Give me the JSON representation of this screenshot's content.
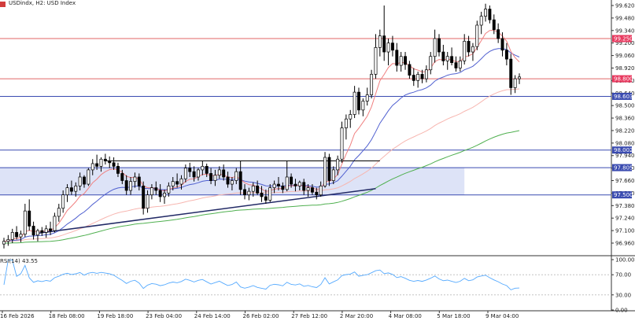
{
  "header": {
    "title": "USDindx, H2:  USD Index",
    "rsi_label": "RSI(14) 43.55"
  },
  "colors": {
    "bull": "#ffffff",
    "bear": "#000000",
    "candle_border": "#000000",
    "ma_fast": "#f08080",
    "ma_mid": "#5060d0",
    "ma_slow": "#f7b6b0",
    "ma_long": "#50b050",
    "red_level": "#e06666",
    "blue_level": "#3a4bb0",
    "zone_fill": "#dde3f7",
    "badge_red": "#e8395f",
    "badge_blue": "#3a4bb0",
    "rsi_line": "#55aaff",
    "grid": "#e6e6e6"
  },
  "chart_data": {
    "type": "candlestick",
    "price_axis_ticks": [
      "99.620",
      "99.480",
      "99.340",
      "99.200",
      "99.060",
      "98.920",
      "98.780",
      "98.640",
      "98.500",
      "98.360",
      "98.220",
      "98.080",
      "97.940",
      "97.800",
      "97.660",
      "97.520",
      "97.380",
      "97.240",
      "97.100",
      "96.960"
    ],
    "ylim": [
      96.84,
      99.72
    ],
    "x_axis_labels": [
      "16 Feb 2026",
      "18 Feb 08:00",
      "19 Feb 18:00",
      "23 Feb 04:00",
      "24 Feb 14:00",
      "26 Feb 02:00",
      "27 Feb 12:00",
      "2 Mar 20:00",
      "4 Mar 08:00",
      "5 Mar 18:00",
      "9 Mar 04:00"
    ],
    "levels": [
      {
        "price": 99.25,
        "label": "99.250",
        "color": "red"
      },
      {
        "price": 98.8,
        "label": "98.800",
        "color": "red"
      },
      {
        "price": 98.603,
        "label": "98.603",
        "color": "blue"
      },
      {
        "price": 98.002,
        "label": "98.002",
        "color": "blue"
      },
      {
        "price": 97.805,
        "label": "97.805",
        "color": "blue"
      },
      {
        "price": 97.5,
        "label": "97.500",
        "color": "blue"
      }
    ],
    "zone": {
      "from": 97.5,
      "to": 97.805,
      "start_bar": 0,
      "end_bar": 109
    },
    "black_line": {
      "price": 97.88,
      "start_bar": 24,
      "end_bar": 89
    },
    "trendline": [
      {
        "bar": 8,
        "price": 97.07
      },
      {
        "bar": 88,
        "price": 97.57
      }
    ],
    "ohlc": [
      [
        96.95,
        97.02,
        96.9,
        96.98
      ],
      [
        96.98,
        97.05,
        96.93,
        97.0
      ],
      [
        97.0,
        97.12,
        96.96,
        97.08
      ],
      [
        97.08,
        97.15,
        97.0,
        97.03
      ],
      [
        97.03,
        97.1,
        96.97,
        97.06
      ],
      [
        97.06,
        97.4,
        97.03,
        97.32
      ],
      [
        97.32,
        97.45,
        97.1,
        97.15
      ],
      [
        97.15,
        97.2,
        97.0,
        97.05
      ],
      [
        97.05,
        97.12,
        96.98,
        97.1
      ],
      [
        97.1,
        97.14,
        97.04,
        97.08
      ],
      [
        97.08,
        97.16,
        97.02,
        97.12
      ],
      [
        97.12,
        97.2,
        97.05,
        97.1
      ],
      [
        97.1,
        97.3,
        97.08,
        97.26
      ],
      [
        97.26,
        97.4,
        97.2,
        97.35
      ],
      [
        97.35,
        97.55,
        97.3,
        97.5
      ],
      [
        97.5,
        97.62,
        97.42,
        97.58
      ],
      [
        97.58,
        97.66,
        97.5,
        97.54
      ],
      [
        97.54,
        97.64,
        97.48,
        97.6
      ],
      [
        97.6,
        97.75,
        97.55,
        97.7
      ],
      [
        97.7,
        97.72,
        97.58,
        97.62
      ],
      [
        97.62,
        97.8,
        97.6,
        97.78
      ],
      [
        97.78,
        97.9,
        97.72,
        97.85
      ],
      [
        97.85,
        97.95,
        97.78,
        97.82
      ],
      [
        97.82,
        97.92,
        97.76,
        97.9
      ],
      [
        97.9,
        97.96,
        97.84,
        97.88
      ],
      [
        97.88,
        97.93,
        97.8,
        97.86
      ],
      [
        97.86,
        97.92,
        97.78,
        97.82
      ],
      [
        97.82,
        97.86,
        97.7,
        97.74
      ],
      [
        97.74,
        97.78,
        97.62,
        97.66
      ],
      [
        97.66,
        97.72,
        97.5,
        97.55
      ],
      [
        97.55,
        97.7,
        97.5,
        97.65
      ],
      [
        97.65,
        97.75,
        97.58,
        97.7
      ],
      [
        97.7,
        97.74,
        97.55,
        97.6
      ],
      [
        97.6,
        97.65,
        97.28,
        97.35
      ],
      [
        97.35,
        97.55,
        97.3,
        97.5
      ],
      [
        97.5,
        97.62,
        97.45,
        97.58
      ],
      [
        97.58,
        97.65,
        97.5,
        97.55
      ],
      [
        97.55,
        97.62,
        97.42,
        97.48
      ],
      [
        97.48,
        97.56,
        97.4,
        97.52
      ],
      [
        97.52,
        97.64,
        97.48,
        97.6
      ],
      [
        97.6,
        97.7,
        97.55,
        97.65
      ],
      [
        97.65,
        97.74,
        97.58,
        97.62
      ],
      [
        97.62,
        97.72,
        97.56,
        97.68
      ],
      [
        97.68,
        97.84,
        97.64,
        97.8
      ],
      [
        97.8,
        97.86,
        97.7,
        97.76
      ],
      [
        97.76,
        97.82,
        97.65,
        97.7
      ],
      [
        97.7,
        97.8,
        97.66,
        97.78
      ],
      [
        97.78,
        97.88,
        97.72,
        97.82
      ],
      [
        97.82,
        97.85,
        97.7,
        97.74
      ],
      [
        97.74,
        97.8,
        97.62,
        97.66
      ],
      [
        97.66,
        97.78,
        97.6,
        97.72
      ],
      [
        97.72,
        97.82,
        97.68,
        97.78
      ],
      [
        97.78,
        97.84,
        97.66,
        97.7
      ],
      [
        97.7,
        97.76,
        97.58,
        97.62
      ],
      [
        97.62,
        97.7,
        97.55,
        97.66
      ],
      [
        97.66,
        97.8,
        97.62,
        97.76
      ],
      [
        97.76,
        97.88,
        97.5,
        97.56
      ],
      [
        97.56,
        97.62,
        97.45,
        97.5
      ],
      [
        97.5,
        97.58,
        97.44,
        97.54
      ],
      [
        97.54,
        97.64,
        97.48,
        97.6
      ],
      [
        97.6,
        97.66,
        97.5,
        97.52
      ],
      [
        97.52,
        97.6,
        97.42,
        97.48
      ],
      [
        97.48,
        97.56,
        97.4,
        97.44
      ],
      [
        97.44,
        97.62,
        97.42,
        97.58
      ],
      [
        97.58,
        97.66,
        97.52,
        97.62
      ],
      [
        97.62,
        97.7,
        97.55,
        97.6
      ],
      [
        97.6,
        97.64,
        97.52,
        97.56
      ],
      [
        97.56,
        97.88,
        97.54,
        97.7
      ],
      [
        97.7,
        97.74,
        97.58,
        97.62
      ],
      [
        97.62,
        97.68,
        97.54,
        97.6
      ],
      [
        97.6,
        97.66,
        97.55,
        97.64
      ],
      [
        97.64,
        97.68,
        97.5,
        97.55
      ],
      [
        97.55,
        97.62,
        97.48,
        97.58
      ],
      [
        97.58,
        97.62,
        97.5,
        97.53
      ],
      [
        97.53,
        97.58,
        97.45,
        97.5
      ],
      [
        97.5,
        97.65,
        97.48,
        97.6
      ],
      [
        97.6,
        97.98,
        97.58,
        97.92
      ],
      [
        97.92,
        97.96,
        97.6,
        97.66
      ],
      [
        97.66,
        97.82,
        97.62,
        97.78
      ],
      [
        97.78,
        97.94,
        97.72,
        97.9
      ],
      [
        97.9,
        98.32,
        97.86,
        98.25
      ],
      [
        98.25,
        98.4,
        98.12,
        98.35
      ],
      [
        98.35,
        98.45,
        98.25,
        98.4
      ],
      [
        98.4,
        98.72,
        98.36,
        98.65
      ],
      [
        98.65,
        98.7,
        98.4,
        98.45
      ],
      [
        98.45,
        98.58,
        98.38,
        98.55
      ],
      [
        98.55,
        98.7,
        98.5,
        98.62
      ],
      [
        98.62,
        98.9,
        98.58,
        98.85
      ],
      [
        98.85,
        99.3,
        98.8,
        99.15
      ],
      [
        99.15,
        99.35,
        99.05,
        99.28
      ],
      [
        99.28,
        99.62,
        99.0,
        99.1
      ],
      [
        99.1,
        99.25,
        98.95,
        99.2
      ],
      [
        99.2,
        99.28,
        99.05,
        99.12
      ],
      [
        99.12,
        99.2,
        98.88,
        98.95
      ],
      [
        98.95,
        99.1,
        98.88,
        99.05
      ],
      [
        99.05,
        99.1,
        98.9,
        98.96
      ],
      [
        98.96,
        99.0,
        98.8,
        98.84
      ],
      [
        98.84,
        98.92,
        98.72,
        98.78
      ],
      [
        98.78,
        98.88,
        98.7,
        98.85
      ],
      [
        98.85,
        98.9,
        98.75,
        98.8
      ],
      [
        98.8,
        98.95,
        98.76,
        98.9
      ],
      [
        98.9,
        99.1,
        98.85,
        99.05
      ],
      [
        99.05,
        99.35,
        98.98,
        99.25
      ],
      [
        99.25,
        99.3,
        99.05,
        99.1
      ],
      [
        99.1,
        99.18,
        98.95,
        99.0
      ],
      [
        99.0,
        99.1,
        98.9,
        99.05
      ],
      [
        99.05,
        99.15,
        98.95,
        98.98
      ],
      [
        98.98,
        99.05,
        98.88,
        98.92
      ],
      [
        98.92,
        99.05,
        98.88,
        99.0
      ],
      [
        99.0,
        99.3,
        98.96,
        99.22
      ],
      [
        99.22,
        99.28,
        99.05,
        99.1
      ],
      [
        99.1,
        99.2,
        99.0,
        99.16
      ],
      [
        99.16,
        99.45,
        99.12,
        99.4
      ],
      [
        99.4,
        99.55,
        99.3,
        99.5
      ],
      [
        99.5,
        99.64,
        99.44,
        99.58
      ],
      [
        99.58,
        99.62,
        99.42,
        99.46
      ],
      [
        99.46,
        99.52,
        99.3,
        99.35
      ],
      [
        99.35,
        99.42,
        99.2,
        99.25
      ],
      [
        99.25,
        99.32,
        99.05,
        99.12
      ],
      [
        99.12,
        99.2,
        98.95,
        99.02
      ],
      [
        99.02,
        99.08,
        98.62,
        98.7
      ],
      [
        98.7,
        98.84,
        98.64,
        98.8
      ],
      [
        98.8,
        98.86,
        98.74,
        98.82
      ]
    ],
    "rsi": {
      "label": "RSI(14) 43.55",
      "current": 43.55,
      "axis_ticks": [
        "100.00",
        "70.00",
        "30.00",
        "0.00"
      ],
      "levels": [
        70,
        30
      ]
    }
  }
}
